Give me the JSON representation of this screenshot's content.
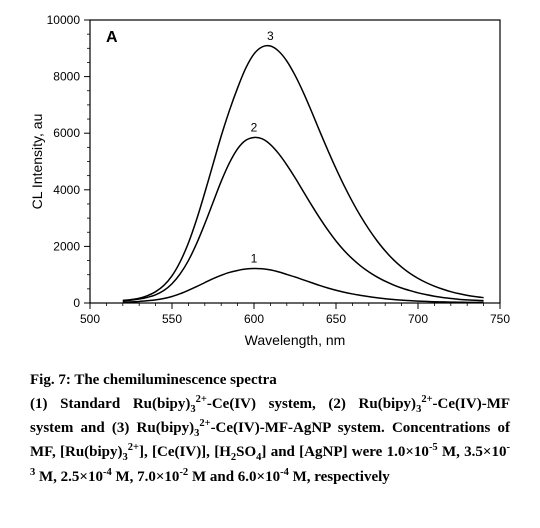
{
  "chart": {
    "type": "line",
    "panel_label": "A",
    "panel_label_fontsize": 16,
    "panel_label_fontweight": "bold",
    "series_labels": [
      "1",
      "2",
      "3"
    ],
    "series_label_fontsize": 12,
    "xlim": [
      500,
      750
    ],
    "ylim": [
      0,
      10000
    ],
    "xtick_step": 50,
    "ytick_step": 2000,
    "xticks": [
      500,
      550,
      600,
      650,
      700,
      750
    ],
    "yticks": [
      0,
      2000,
      4000,
      6000,
      8000,
      10000
    ],
    "xlabel": "Wavelength, nm",
    "ylabel": "CL Intensity, au",
    "axis_label_fontsize": 14,
    "tick_fontsize": 12,
    "background_color": "#ffffff",
    "axis_color": "#000000",
    "line_color": "#000000",
    "line_width": 1.5,
    "tick_len_major": 6,
    "series": {
      "x": [
        520,
        525,
        530,
        535,
        540,
        545,
        550,
        555,
        560,
        565,
        570,
        575,
        580,
        585,
        590,
        595,
        600,
        605,
        610,
        615,
        620,
        625,
        630,
        635,
        640,
        645,
        650,
        655,
        660,
        665,
        670,
        675,
        680,
        685,
        690,
        695,
        700,
        705,
        710,
        715,
        720,
        725,
        730,
        735,
        740
      ],
      "y1": [
        30,
        40,
        55,
        80,
        110,
        160,
        230,
        330,
        450,
        580,
        720,
        860,
        980,
        1080,
        1150,
        1200,
        1220,
        1210,
        1170,
        1100,
        1010,
        920,
        820,
        720,
        620,
        530,
        450,
        380,
        320,
        270,
        225,
        185,
        150,
        125,
        100,
        82,
        68,
        56,
        46,
        38,
        32,
        28,
        24,
        22,
        20
      ],
      "y2": [
        80,
        100,
        140,
        200,
        290,
        440,
        680,
        1030,
        1500,
        2100,
        2800,
        3550,
        4300,
        4950,
        5450,
        5750,
        5850,
        5800,
        5600,
        5280,
        4880,
        4430,
        3950,
        3470,
        3010,
        2580,
        2190,
        1850,
        1560,
        1310,
        1100,
        920,
        770,
        640,
        530,
        440,
        360,
        295,
        240,
        195,
        160,
        130,
        110,
        95,
        85
      ],
      "y3": [
        90,
        120,
        170,
        260,
        400,
        620,
        960,
        1460,
        2120,
        2950,
        3900,
        4900,
        5900,
        6800,
        7600,
        8300,
        8800,
        9050,
        9080,
        8900,
        8550,
        8050,
        7450,
        6780,
        6080,
        5400,
        4750,
        4140,
        3580,
        3070,
        2610,
        2200,
        1840,
        1530,
        1270,
        1050,
        870,
        720,
        595,
        490,
        400,
        330,
        270,
        225,
        190
      ]
    }
  },
  "caption": {
    "fig_label": "Fig. 7:",
    "title": "The chemiluminescence spectra",
    "line1_a": "(1) Standard Ru(bipy)",
    "line1_b": "-Ce(IV) system, (2) Ru(bipy)",
    "line1_c": "-",
    "line2_a": "Ce(IV)-MF system and (3) Ru(bipy)",
    "line2_b": "-Ce(IV)-MF-AgNP",
    "line3_a": "system. Concentrations of MF, [Ru(bipy)",
    "line3_b": "], [Ce(IV)], [H",
    "line3_c": "SO",
    "line3_d": "]",
    "line4_a": "and [AgNP] were 1.0×10",
    "line4_b": " M, 3.5×10",
    "line4_c": " M, 2.5×10",
    "line4_d": " M, 7.0×10",
    "line4_e": " M",
    "line5_a": "and 6.0×10",
    "line5_b": " M, respectively",
    "sub3": "3",
    "sup2p": "2+",
    "sub2": "2",
    "sub4": "4",
    "em5": "-5",
    "em3": "-3",
    "em4": "-4",
    "em2": "-2"
  }
}
